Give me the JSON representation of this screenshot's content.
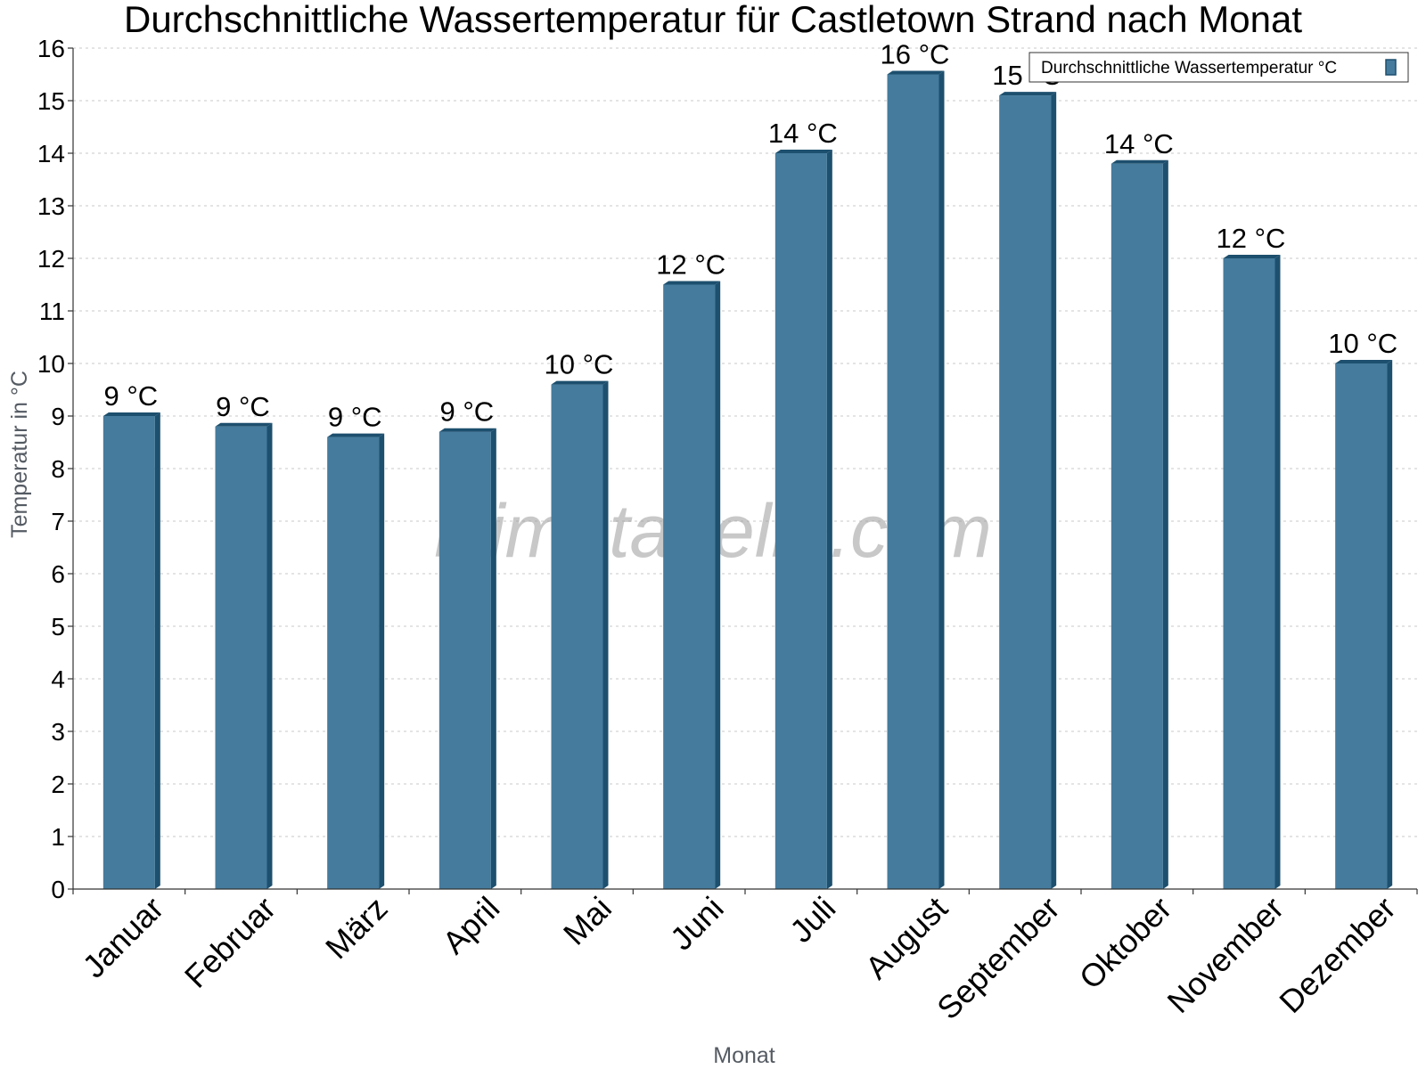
{
  "chart_data": {
    "type": "bar",
    "title": "Durchschnittliche Wassertemperatur für Castletown Strand nach Monat",
    "xlabel": "Monat",
    "ylabel": "Temperatur in °C",
    "ylim": [
      0,
      16
    ],
    "yticks": [
      "0",
      "1",
      "2",
      "3",
      "4",
      "5",
      "6",
      "7",
      "8",
      "9",
      "10",
      "11",
      "12",
      "13",
      "14",
      "15",
      "16"
    ],
    "categories": [
      "Januar",
      "Februar",
      "März",
      "April",
      "Mai",
      "Juni",
      "Juli",
      "August",
      "September",
      "Oktober",
      "November",
      "Dezember"
    ],
    "series": [
      {
        "name": "Durchschnittliche Wassertemperatur °C",
        "values": [
          9.0,
          8.8,
          8.6,
          8.7,
          9.6,
          11.5,
          14.0,
          15.5,
          15.1,
          13.8,
          12.0,
          10.0
        ],
        "labels": [
          "9 °C",
          "9 °C",
          "9 °C",
          "9 °C",
          "10 °C",
          "12 °C",
          "14 °C",
          "16 °C",
          "15 °C",
          "14 °C",
          "12 °C",
          "10 °C"
        ],
        "color": "#457b9d",
        "side_color": "#1d4f6e"
      }
    ],
    "grid": true,
    "legend_position": "top-right",
    "watermark": "klimatabelle.com"
  }
}
